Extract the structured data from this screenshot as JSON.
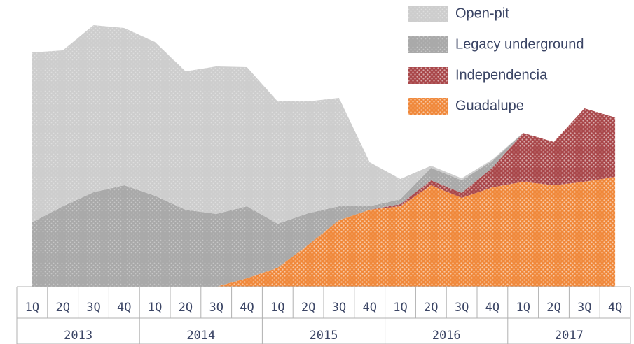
{
  "chart_data": {
    "type": "stacked_area",
    "categories": [
      "1Q",
      "2Q",
      "3Q",
      "4Q",
      "1Q",
      "2Q",
      "3Q",
      "4Q",
      "1Q",
      "2Q",
      "3Q",
      "4Q",
      "1Q",
      "2Q",
      "3Q",
      "4Q",
      "1Q",
      "2Q",
      "3Q",
      "4Q"
    ],
    "groups": [
      "2013",
      "2014",
      "2015",
      "2016",
      "2017"
    ],
    "series": [
      {
        "name": "Open-pit",
        "color": "#cdcdcd",
        "values": [
          243,
          223,
          239,
          225,
          220,
          198,
          211,
          199,
          175,
          160,
          155,
          63,
          29,
          3,
          3,
          2,
          0,
          0,
          0,
          0
        ]
      },
      {
        "name": "Legacy underground",
        "color": "#a9a9a9",
        "values": [
          92,
          115,
          135,
          145,
          130,
          110,
          104,
          103,
          63,
          45,
          20,
          5,
          7,
          18,
          18,
          10,
          0,
          0,
          0,
          0
        ]
      },
      {
        "name": "Independencia",
        "color": "#a9474a",
        "values": [
          0,
          0,
          0,
          0,
          0,
          0,
          0,
          0,
          0,
          0,
          0,
          0,
          3,
          7,
          7,
          28,
          70,
          62,
          105,
          85
        ]
      },
      {
        "name": "Guadalupe",
        "color": "#f0883a",
        "values": [
          0,
          0,
          0,
          0,
          0,
          0,
          0,
          12,
          27,
          60,
          95,
          110,
          115,
          145,
          127,
          142,
          150,
          145,
          150,
          157
        ]
      }
    ],
    "ylim": [
      0,
      400
    ],
    "legend": "top-right"
  }
}
